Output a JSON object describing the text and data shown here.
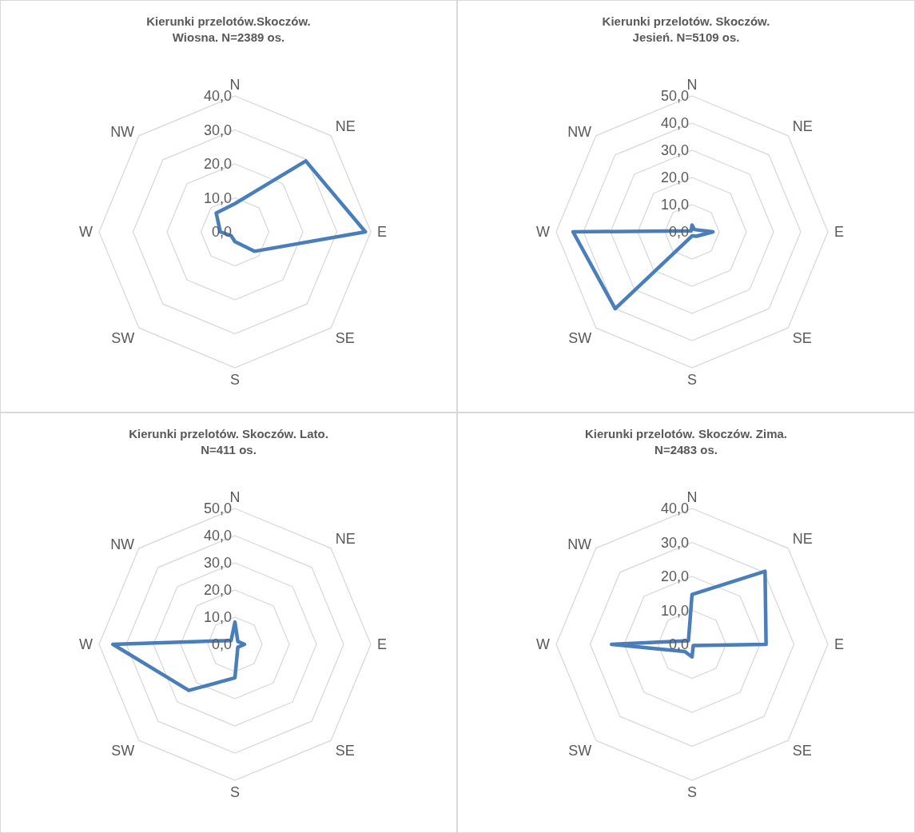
{
  "chart_data": [
    {
      "type": "radar",
      "title": "Kierunki przelotów.Skoczów. Wiosna. N=2389 os.",
      "categories": [
        "N",
        "NE",
        "E",
        "SE",
        "S",
        "SW",
        "W",
        "NW"
      ],
      "ylim": [
        0,
        40
      ],
      "yticks": [
        {
          "value": 0,
          "label": "0,0"
        },
        {
          "value": 10,
          "label": "10,0"
        },
        {
          "value": 20,
          "label": "20,0"
        },
        {
          "value": 30,
          "label": "30,0"
        },
        {
          "value": 40,
          "label": "40,0"
        }
      ],
      "grid": true,
      "series": [
        {
          "color": "#4a7ebb",
          "values": [
            8.3,
            29.5,
            38.4,
            8.1,
            2.9,
            1.6,
            4.3,
            7.8
          ]
        }
      ]
    },
    {
      "type": "radar",
      "title": "Kierunki przelotów. Skoczów. Jesień. N=5109 os.",
      "categories": [
        "N",
        "NE",
        "E",
        "SE",
        "S",
        "SW",
        "W",
        "NW"
      ],
      "ylim": [
        0,
        50
      ],
      "yticks": [
        {
          "value": 0,
          "label": "0,0"
        },
        {
          "value": 10,
          "label": "10,0"
        },
        {
          "value": 20,
          "label": "20,0"
        },
        {
          "value": 30,
          "label": "30,0"
        },
        {
          "value": 40,
          "label": "40,0"
        },
        {
          "value": 50,
          "label": "50,0"
        }
      ],
      "grid": true,
      "series": [
        {
          "color": "#4a7ebb",
          "values": [
            2.5,
            1.2,
            7.7,
            2.3,
            1.5,
            40.0,
            43.8,
            0.5
          ]
        }
      ]
    },
    {
      "type": "radar",
      "title": "Kierunki przelotów. Skoczów. Lato. N=411 os.",
      "categories": [
        "N",
        "NE",
        "E",
        "SE",
        "S",
        "SW",
        "W",
        "NW"
      ],
      "ylim": [
        0,
        50
      ],
      "yticks": [
        {
          "value": 0,
          "label": "0,0"
        },
        {
          "value": 10,
          "label": "10,0"
        },
        {
          "value": 20,
          "label": "20,0"
        },
        {
          "value": 30,
          "label": "30,0"
        },
        {
          "value": 40,
          "label": "40,0"
        },
        {
          "value": 50,
          "label": "50,0"
        }
      ],
      "grid": true,
      "series": [
        {
          "color": "#4a7ebb",
          "values": [
            8.2,
            1.5,
            3.5,
            1.5,
            12.3,
            24.0,
            44.9,
            2.0
          ]
        }
      ]
    },
    {
      "type": "radar",
      "title": "Kierunki przelotów. Skoczów. Zima. N=2483 os.",
      "categories": [
        "N",
        "NE",
        "E",
        "SE",
        "S",
        "SW",
        "W",
        "NW"
      ],
      "ylim": [
        0,
        40
      ],
      "yticks": [
        {
          "value": 0,
          "label": "0,0"
        },
        {
          "value": 10,
          "label": "10,0"
        },
        {
          "value": 20,
          "label": "20,0"
        },
        {
          "value": 30,
          "label": "30,0"
        },
        {
          "value": 40,
          "label": "40,0"
        }
      ],
      "grid": true,
      "series": [
        {
          "color": "#4a7ebb",
          "values": [
            14.7,
            30.4,
            21.8,
            0.5,
            3.7,
            3.0,
            23.7,
            1.5
          ]
        }
      ]
    }
  ]
}
